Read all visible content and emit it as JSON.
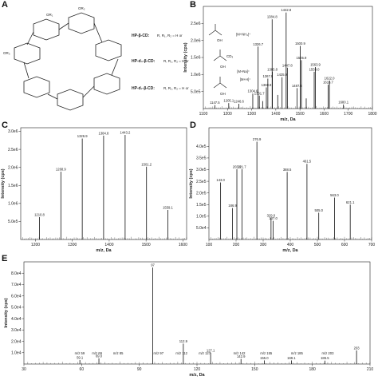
{
  "panels": {
    "A": "A",
    "B": "B",
    "C": "C",
    "D": "D",
    "E": "E"
  },
  "panel_a": {
    "ring_labels": [
      "OR₁",
      "OR₂",
      "OR₃"
    ],
    "legend": [
      {
        "label": "HP-β-CD:",
        "desc": "R, R₁, R₂ = H or"
      },
      {
        "label": "HP-d₃-β-CD:",
        "desc": "R, R₁, R₂ = H or"
      },
      {
        "label": "HP-d₇-β-CD:",
        "desc": "R, R₁, R₂ = H or"
      }
    ],
    "group_labels": [
      "OH",
      "OH",
      "CD₃",
      "OH"
    ]
  },
  "chart_data": [
    {
      "panel": "B",
      "type": "bar",
      "xlabel": "m/z, Da",
      "ylabel": "Intensity (cps)",
      "xlim": [
        1100,
        1800
      ],
      "ylim": [
        0,
        3.0
      ],
      "xticks": [
        1100,
        1200,
        1300,
        1400,
        1500,
        1600,
        1700,
        1800
      ],
      "yticks": [
        {
          "v": 0.5,
          "t": "5.0e5"
        },
        {
          "v": 1.0,
          "t": "1.0e6"
        },
        {
          "v": 1.5,
          "t": "1.5e6"
        },
        {
          "v": 2.0,
          "t": "2.0e6"
        },
        {
          "v": 2.5,
          "t": "2.5e6"
        }
      ],
      "peaks": [
        {
          "x": 1147.5,
          "y": 0.1,
          "label": "1147.5"
        },
        {
          "x": 1205.1,
          "y": 0.16,
          "label": "1205.1"
        },
        {
          "x": 1246.6,
          "y": 0.14,
          "label": "1246.6"
        },
        {
          "x": 1304.6,
          "y": 0.44,
          "label": "1304.6"
        },
        {
          "x": 1326.7,
          "y": 1.82,
          "label": "1326.7"
        },
        {
          "x": 1331.7,
          "y": 0.38,
          "label": "1331.7"
        },
        {
          "x": 1345.5,
          "y": 0.22,
          "label": ""
        },
        {
          "x": 1360.8,
          "y": 0.62,
          "label": "1360.8"
        },
        {
          "x": 1367.0,
          "y": 0.88,
          "label": "1367.0"
        },
        {
          "x": 1385.8,
          "y": 1.08,
          "label": "1385.8"
        },
        {
          "x": 1384.8,
          "y": 2.62,
          "label": "1384.8"
        },
        {
          "x": 1407.9,
          "y": 0.4,
          "label": ""
        },
        {
          "x": 1425.9,
          "y": 0.92,
          "label": "1425.9"
        },
        {
          "x": 1442.8,
          "y": 2.82,
          "label": "1442.8"
        },
        {
          "x": 1447.8,
          "y": 1.2,
          "label": "1447.8"
        },
        {
          "x": 1487.6,
          "y": 0.6,
          "label": "1487.6"
        },
        {
          "x": 1500.9,
          "y": 1.84,
          "label": "1500.9"
        },
        {
          "x": 1505.9,
          "y": 1.42,
          "label": "1505.9"
        },
        {
          "x": 1525.9,
          "y": 0.3,
          "label": ""
        },
        {
          "x": 1559.0,
          "y": 1.08,
          "label": "1559.0"
        },
        {
          "x": 1563.9,
          "y": 1.22,
          "label": "1563.9"
        },
        {
          "x": 1616.7,
          "y": 0.7,
          "label": "1616.7"
        },
        {
          "x": 1622.0,
          "y": 0.82,
          "label": "1622.0"
        },
        {
          "x": 1680.1,
          "y": 0.12,
          "label": "1680.1"
        }
      ],
      "annotations": [
        {
          "text": "[M+NH₄]⁺",
          "x": 1296,
          "y": 2.15
        },
        {
          "text": "[M+Na]⁺",
          "x": 1292,
          "y": 1.05
        },
        {
          "text": "[M+H]⁺",
          "x": 1296,
          "y": 0.82
        }
      ]
    },
    {
      "panel": "C",
      "type": "bar",
      "xlabel": "m/z, Da",
      "ylabel": "Intensity (cps)",
      "xlim": [
        1160,
        1610
      ],
      "ylim": [
        0,
        3.1
      ],
      "xticks": [
        1200,
        1300,
        1400,
        1500,
        1600
      ],
      "yticks": [
        {
          "v": 0.5,
          "t": "5.0e5"
        },
        {
          "v": 1.0,
          "t": "1.0e6"
        },
        {
          "v": 1.5,
          "t": "1.5e6"
        },
        {
          "v": 2.0,
          "t": "2.0e6"
        },
        {
          "v": 2.5,
          "t": "2.5e6"
        },
        {
          "v": 3.0,
          "t": "3.0e6"
        }
      ],
      "peaks": [
        {
          "x": 1210.8,
          "y": 0.62,
          "label": "1210.8"
        },
        {
          "x": 1268.9,
          "y": 1.88,
          "label": "1268.9"
        },
        {
          "x": 1326.9,
          "y": 2.8,
          "label": "1326.9"
        },
        {
          "x": 1384.8,
          "y": 2.88,
          "label": "1384.8"
        },
        {
          "x": 1443.2,
          "y": 2.9,
          "label": "1443.2"
        },
        {
          "x": 1501.2,
          "y": 2.02,
          "label": "1501.2"
        },
        {
          "x": 1559.1,
          "y": 0.82,
          "label": "1559.1"
        }
      ]
    },
    {
      "panel": "D",
      "type": "bar",
      "xlabel": "m/z, Da",
      "ylabel": "Intensity (cps)",
      "xlim": [
        100,
        700
      ],
      "ylim": [
        0,
        4.8
      ],
      "xticks": [
        100,
        200,
        300,
        400,
        500,
        600,
        700
      ],
      "yticks": [
        {
          "v": 0.5,
          "t": "5.0e4"
        },
        {
          "v": 1.0,
          "t": "1.0e5"
        },
        {
          "v": 1.5,
          "t": "1.5e5"
        },
        {
          "v": 2.0,
          "t": "2.0e5"
        },
        {
          "v": 2.5,
          "t": "2.5e5"
        },
        {
          "v": 3.0,
          "t": "3.0e5"
        },
        {
          "v": 3.5,
          "t": "3.5e5"
        },
        {
          "v": 4.0,
          "t": "4.0e5"
        }
      ],
      "peaks": [
        {
          "x": 143.0,
          "y": 2.45,
          "label": "143.0"
        },
        {
          "x": 186.9,
          "y": 1.35,
          "label": "186.9"
        },
        {
          "x": 203.0,
          "y": 3.02,
          "label": "203.0"
        },
        {
          "x": 221.7,
          "y": 3.02,
          "label": "221.7"
        },
        {
          "x": 276.9,
          "y": 4.2,
          "label": "276.9"
        },
        {
          "x": 329.0,
          "y": 0.92,
          "label": "329.0"
        },
        {
          "x": 337.0,
          "y": 0.8,
          "label": "337.0"
        },
        {
          "x": 388.5,
          "y": 2.9,
          "label": "388.5"
        },
        {
          "x": 461.5,
          "y": 3.25,
          "label": "461.5"
        },
        {
          "x": 505.0,
          "y": 1.15,
          "label": "505.0"
        },
        {
          "x": 563.0,
          "y": 1.8,
          "label": "563.0"
        },
        {
          "x": 621.1,
          "y": 1.5,
          "label": "621.1"
        }
      ]
    },
    {
      "panel": "E",
      "type": "bar",
      "xlabel": "m/z, Da",
      "ylabel": "Intensity (cps)",
      "xlim": [
        30,
        210
      ],
      "ylim": [
        0,
        9.0
      ],
      "xticks": [
        30,
        60,
        90,
        120,
        150,
        180,
        210
      ],
      "yticks": [
        {
          "v": 1.0,
          "t": "1.0e4"
        },
        {
          "v": 2.0,
          "t": "2.0e4"
        },
        {
          "v": 3.0,
          "t": "3.0e4"
        },
        {
          "v": 4.0,
          "t": "4.0e4"
        },
        {
          "v": 5.0,
          "t": "5.0e4"
        },
        {
          "v": 6.0,
          "t": "6.0e4"
        },
        {
          "v": 7.0,
          "t": "7.0e4"
        },
        {
          "v": 8.0,
          "t": "8.0e4"
        }
      ],
      "peaks": [
        {
          "x": 59.1,
          "y": 0.35,
          "label": "59.1"
        },
        {
          "x": 69.0,
          "y": 0.5,
          "label": "69.0"
        },
        {
          "x": 97.0,
          "y": 8.5,
          "label": "97"
        },
        {
          "x": 112.9,
          "y": 1.8,
          "label": "112.9"
        },
        {
          "x": 127.1,
          "y": 1.0,
          "label": "127.1"
        },
        {
          "x": 142.9,
          "y": 0.45,
          "label": "142.9"
        },
        {
          "x": 155.0,
          "y": 0.32,
          "label": "155.0"
        },
        {
          "x": 169.1,
          "y": 0.32,
          "label": "169.1"
        },
        {
          "x": 186.5,
          "y": 0.3,
          "label": "186.5"
        },
        {
          "x": 203.0,
          "y": 1.2,
          "label": "203"
        }
      ],
      "fragment_labels": [
        {
          "text": "m/z 59",
          "x": 59
        },
        {
          "text": "m/z 69",
          "x": 68
        },
        {
          "text": "m/z 85",
          "x": 79
        },
        {
          "text": "m/z 97",
          "x": 100
        },
        {
          "text": "m/z 112",
          "x": 112
        },
        {
          "text": "m/z 127",
          "x": 124
        },
        {
          "text": "m/z 142",
          "x": 142
        },
        {
          "text": "m/z 155",
          "x": 156
        },
        {
          "text": "m/z 185",
          "x": 172
        },
        {
          "text": "m/z 203",
          "x": 188
        }
      ]
    }
  ]
}
